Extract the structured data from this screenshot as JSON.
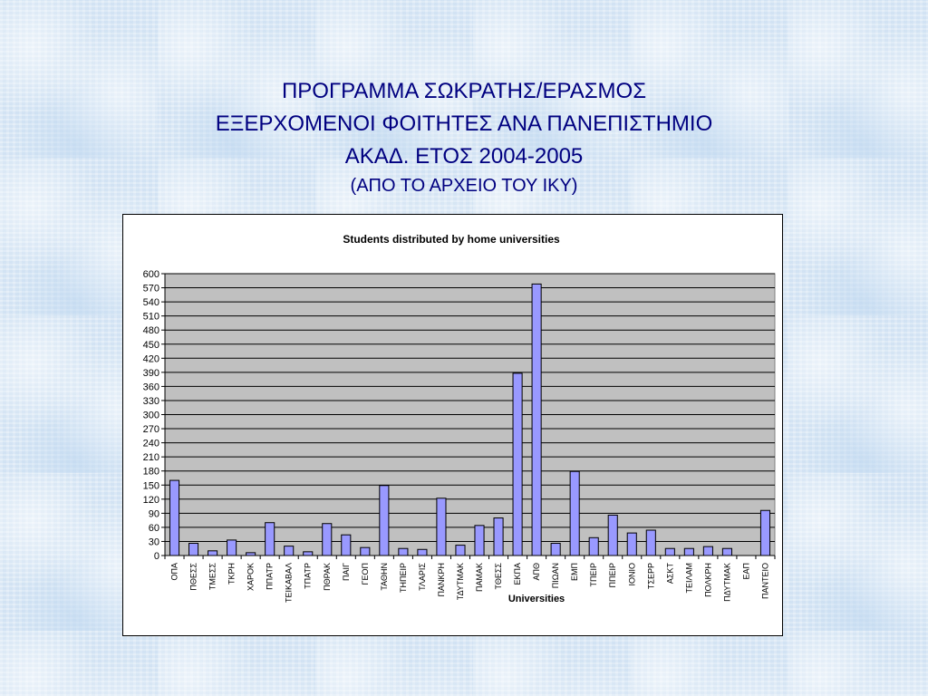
{
  "slide": {
    "title_lines": [
      "ΠΡΟΓΡΑΜΜΑ ΣΩΚΡΑΤΗΣ/ΕΡΑΣΜΟΣ",
      "ΕΞΕΡΧΟΜΕΝΟΙ ΦΟΙΤΗΤΕΣ ΑΝΑ ΠΑΝΕΠΙΣΤΗΜΙΟ",
      "ΑΚΑΔ. ΕΤΟΣ 2004-2005",
      "(ΑΠΟ ΤΟ ΑΡΧΕΙΟ ΤΟΥ ΙΚΥ)"
    ],
    "title_color": "#000080"
  },
  "chart_data": {
    "type": "bar",
    "title": "Students distributed by home universities",
    "xlabel": "Universities",
    "ylabel": "",
    "ylim": [
      0,
      600
    ],
    "ytick_step": 30,
    "grid": true,
    "legend": "none",
    "plot_background": "#c0c0c0",
    "bar_color": "#9999ff",
    "categories": [
      "ΟΠΑ",
      "ΠΘΕΣΣ",
      "ΤΜΕΣΣ",
      "ΤΚΡΗ",
      "ΧΑΡΟΚ",
      "ΠΠΑΤΡ",
      "ΤΕΙΚΑΒΑΛ",
      "ΤΠΑΤΡ",
      "ΠΘΡΑΚ",
      "ΠΑΙΓ",
      "ΓΕΟΠ",
      "ΤΑΘΗΝ",
      "ΤΗΠΕΙΡ",
      "ΤΛΑΡΙΣ",
      "ΠΑΝΚΡΗ",
      "ΤΔΥΤΜΑΚ",
      "ΠΑΜΑΚ",
      "ΤΘΕΣΣ",
      "ΕΚΠΑ",
      "ΑΠΘ",
      "ΠΙΩΑΝ",
      "ΕΜΠ",
      "ΤΠΕΙΡ",
      "ΠΠΕΙΡ",
      "ΙΟΝΙΟ",
      "ΤΣΕΡΡ",
      "ΑΣΚΤ",
      "ΤΕΙΛΑΜ",
      "ΠΟΛΚΡΗ",
      "ΠΔΥΤΜΑΚ",
      "ΕΑΠ",
      "ΠΑΝΤΕΙΟ"
    ],
    "values": [
      160,
      26,
      10,
      33,
      6,
      70,
      20,
      8,
      68,
      44,
      17,
      149,
      15,
      13,
      122,
      22,
      64,
      80,
      388,
      578,
      26,
      179,
      38,
      86,
      48,
      54,
      15,
      15,
      19,
      15,
      0,
      96
    ]
  }
}
